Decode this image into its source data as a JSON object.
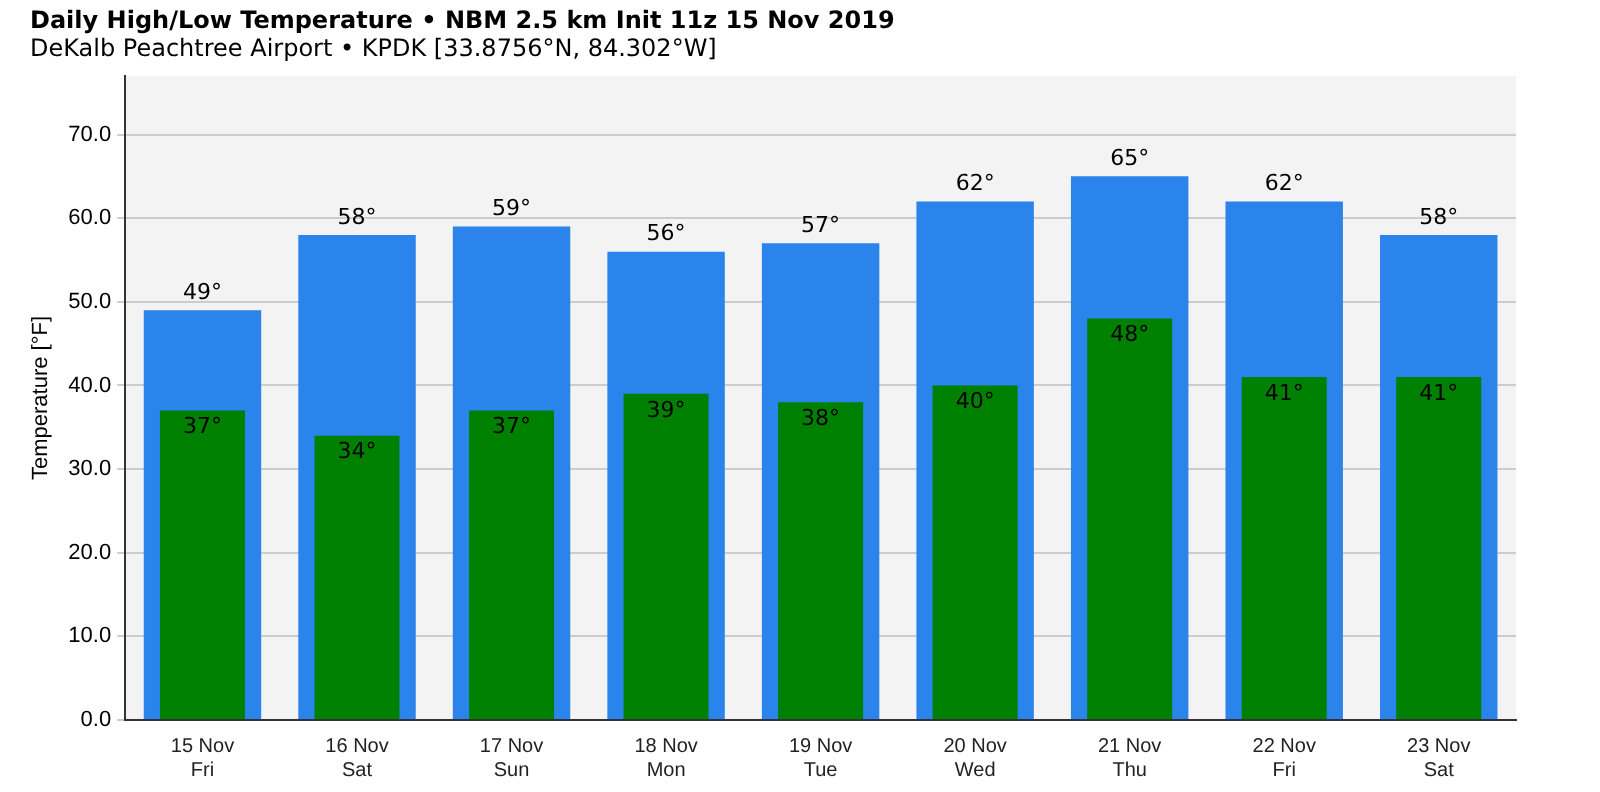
{
  "chart_data": {
    "type": "bar",
    "title": "Daily High/Low Temperature • NBM 2.5 km Init 11z 15 Nov 2019",
    "subtitle": "DeKalb Peachtree Airport • KPDK [33.8756°N, 84.302°W]",
    "ylabel": "Temperature [°F]",
    "categories": [
      "15 Nov\nFri",
      "16 Nov\nSat",
      "17 Nov\nSun",
      "18 Nov\nMon",
      "19 Nov\nTue",
      "20 Nov\nWed",
      "21 Nov\nThu",
      "22 Nov\nFri",
      "23 Nov\nSat"
    ],
    "series": [
      {
        "color": "#2b83ec",
        "values": [
          49,
          58,
          59,
          56,
          57,
          62,
          65,
          62,
          58
        ],
        "value_labels": [
          "49°",
          "58°",
          "59°",
          "56°",
          "57°",
          "62°",
          "65°",
          "62°",
          "58°"
        ]
      },
      {
        "color": "#008000",
        "values": [
          37,
          34,
          37,
          39,
          38,
          40,
          48,
          41,
          41
        ],
        "value_labels": [
          "37°",
          "34°",
          "37°",
          "39°",
          "38°",
          "40°",
          "48°",
          "41°",
          "41°"
        ]
      }
    ],
    "ylim": [
      0,
      77
    ],
    "yticks": [
      {
        "value": 0,
        "label": "0.0"
      },
      {
        "value": 10,
        "label": "10.0"
      },
      {
        "value": 20,
        "label": "20.0"
      },
      {
        "value": 30,
        "label": "30.0"
      },
      {
        "value": 40,
        "label": "40.0"
      },
      {
        "value": 50,
        "label": "50.0"
      },
      {
        "value": 60,
        "label": "60.0"
      },
      {
        "value": 70,
        "label": "70.0"
      }
    ],
    "grid": "y",
    "legend": false
  }
}
